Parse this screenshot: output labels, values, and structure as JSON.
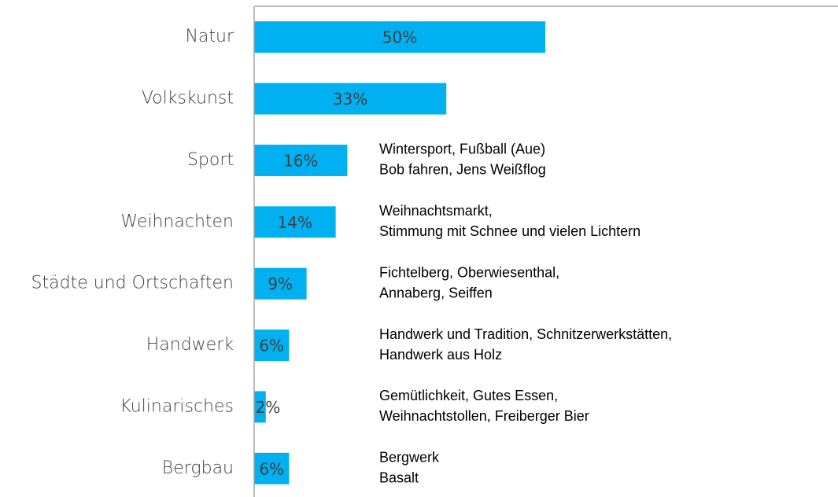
{
  "chart_data": {
    "type": "hbar",
    "categories": [
      "Natur",
      "Volkskunst",
      "Sport",
      "Weihnachten",
      "Städte und Ortschaften",
      "Handwerk",
      "Kulinarisches",
      "Bergbau"
    ],
    "values": [
      50,
      33,
      16,
      14,
      9,
      6,
      2,
      6
    ],
    "value_labels": [
      "50%",
      "33%",
      "16%",
      "14%",
      "9%",
      "6%",
      "2%",
      "6%"
    ],
    "color": "#00b0f0",
    "xlim": [
      0,
      100
    ],
    "annotations": [
      null,
      null,
      [
        "Wintersport, Fußball (Aue)",
        "Bob fahren, Jens Weißflog"
      ],
      [
        "Weihnachtsmarkt,",
        "Stimmung mit Schnee und vielen Lichtern"
      ],
      [
        "Fichtelberg, Oberwiesenthal,",
        "Annaberg, Seiffen"
      ],
      [
        "Handwerk und Tradition, Schnitzerwerkstätten,",
        "Handwerk aus Holz"
      ],
      [
        "Gemütlichkeit, Gutes Essen,",
        "Weihnachtstollen, Freiberger Bier"
      ],
      [
        "Bergwerk",
        "Basalt"
      ]
    ]
  }
}
